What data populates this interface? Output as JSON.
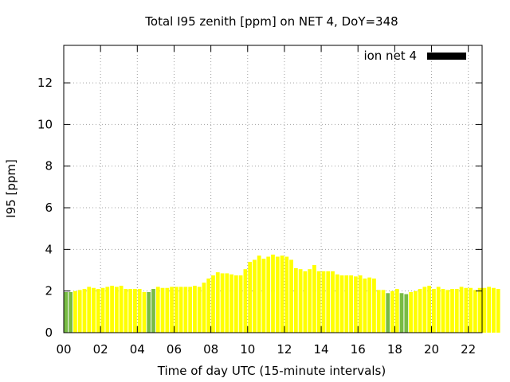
{
  "chart_data": {
    "type": "bar",
    "title": "Total I95 zenith [ppm] on NET 4, DoY=348",
    "xlabel": "Time of day UTC (15-minute intervals)",
    "ylabel": "I95 [ppm]",
    "xlim": [
      0,
      22.75
    ],
    "ylim": [
      0,
      13.8
    ],
    "x_ticks": [
      {
        "value": 0,
        "label": "00"
      },
      {
        "value": 2,
        "label": "02"
      },
      {
        "value": 4,
        "label": "04"
      },
      {
        "value": 6,
        "label": "06"
      },
      {
        "value": 8,
        "label": "08"
      },
      {
        "value": 10,
        "label": "10"
      },
      {
        "value": 12,
        "label": "12"
      },
      {
        "value": 14,
        "label": "14"
      },
      {
        "value": 16,
        "label": "16"
      },
      {
        "value": 18,
        "label": "18"
      },
      {
        "value": 20,
        "label": "20"
      },
      {
        "value": 22,
        "label": "22"
      }
    ],
    "y_ticks": [
      0,
      2,
      4,
      6,
      8,
      10,
      12
    ],
    "grid": true,
    "legend": {
      "position": "top-right",
      "label": "ion net 4",
      "color": "#000000"
    },
    "colors": {
      "normal": "#ffff00",
      "low": "#77bb44"
    },
    "interval_hours": 0.25,
    "values": [
      1.95,
      1.95,
      2.0,
      2.05,
      2.1,
      2.2,
      2.15,
      2.1,
      2.15,
      2.2,
      2.25,
      2.2,
      2.25,
      2.1,
      2.1,
      2.1,
      2.1,
      1.95,
      1.95,
      2.1,
      2.2,
      2.15,
      2.15,
      2.2,
      2.2,
      2.2,
      2.2,
      2.2,
      2.25,
      2.2,
      2.4,
      2.6,
      2.75,
      2.9,
      2.85,
      2.85,
      2.8,
      2.75,
      2.75,
      3.05,
      3.4,
      3.5,
      3.7,
      3.55,
      3.65,
      3.75,
      3.65,
      3.7,
      3.65,
      3.5,
      3.1,
      3.05,
      2.95,
      3.05,
      3.25,
      2.95,
      2.95,
      2.95,
      2.95,
      2.8,
      2.75,
      2.75,
      2.75,
      2.7,
      2.75,
      2.6,
      2.65,
      2.6,
      2.05,
      2.05,
      1.9,
      2.0,
      2.1,
      1.9,
      1.85,
      1.95,
      2.0,
      2.1,
      2.2,
      2.25,
      2.1,
      2.2,
      2.1,
      2.05,
      2.1,
      2.1,
      2.2,
      2.15,
      2.15,
      2.05,
      2.15,
      2.15,
      2.2,
      2.15,
      2.1
    ],
    "low_indices": [
      0,
      1,
      18,
      19,
      70,
      73,
      74
    ]
  }
}
